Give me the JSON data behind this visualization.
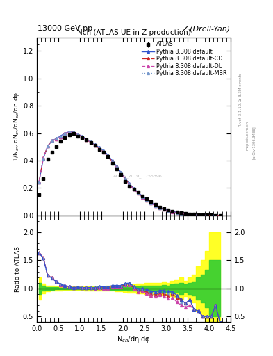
{
  "title_top": "13000 GeV pp",
  "title_right": "Z (Drell-Yan)",
  "plot_title": "Nch (ATLAS UE in Z production)",
  "ylabel_main": "1/N$_{ev}$ dN$_{ev}$/dN$_{ch}$/dη dφ",
  "ylabel_ratio": "Ratio to ATLAS",
  "xlabel": "N$_{ch}$/dη dφ",
  "rivet_label": "Rivet 3.1.10, ≥ 3.3M events",
  "arxiv_label": "[arXiv:1306.3436]",
  "mcplots_label": "mcplots.cern.ch",
  "atlas_watermark": "ATLAS_2019_I1755396",
  "x_data": [
    0.05,
    0.15,
    0.25,
    0.35,
    0.45,
    0.55,
    0.65,
    0.75,
    0.85,
    0.95,
    1.05,
    1.15,
    1.25,
    1.35,
    1.45,
    1.55,
    1.65,
    1.75,
    1.85,
    1.95,
    2.05,
    2.15,
    2.25,
    2.35,
    2.45,
    2.55,
    2.65,
    2.75,
    2.85,
    2.95,
    3.05,
    3.15,
    3.25,
    3.35,
    3.45,
    3.55,
    3.65,
    3.75,
    3.85,
    3.95,
    4.05,
    4.15,
    4.25
  ],
  "atlas_y": [
    0.15,
    0.27,
    0.41,
    0.46,
    0.5,
    0.54,
    0.57,
    0.59,
    0.6,
    0.58,
    0.57,
    0.55,
    0.53,
    0.51,
    0.48,
    0.46,
    0.43,
    0.38,
    0.34,
    0.3,
    0.25,
    0.21,
    0.19,
    0.17,
    0.14,
    0.12,
    0.1,
    0.08,
    0.06,
    0.05,
    0.04,
    0.03,
    0.025,
    0.02,
    0.015,
    0.01,
    0.008,
    0.005,
    0.004,
    0.003,
    0.002,
    0.001,
    0.001
  ],
  "atlas_yerr": [
    0.015,
    0.012,
    0.01,
    0.01,
    0.009,
    0.009,
    0.009,
    0.009,
    0.009,
    0.009,
    0.009,
    0.009,
    0.009,
    0.009,
    0.009,
    0.009,
    0.009,
    0.008,
    0.008,
    0.008,
    0.008,
    0.008,
    0.007,
    0.007,
    0.006,
    0.006,
    0.005,
    0.004,
    0.003,
    0.003,
    0.002,
    0.002,
    0.002,
    0.002,
    0.001,
    0.001,
    0.001,
    0.001,
    0.001,
    0.001,
    0.001,
    0.0005,
    0.0005
  ],
  "pythia_default_y": [
    0.245,
    0.415,
    0.505,
    0.545,
    0.56,
    0.58,
    0.6,
    0.61,
    0.608,
    0.595,
    0.578,
    0.558,
    0.538,
    0.515,
    0.495,
    0.473,
    0.44,
    0.4,
    0.358,
    0.315,
    0.272,
    0.23,
    0.197,
    0.168,
    0.14,
    0.118,
    0.095,
    0.075,
    0.058,
    0.048,
    0.038,
    0.028,
    0.022,
    0.016,
    0.011,
    0.008,
    0.005,
    0.003,
    0.002,
    0.0015,
    0.001,
    0.0007,
    0.0004
  ],
  "pythia_cd_y": [
    0.245,
    0.418,
    0.505,
    0.548,
    0.558,
    0.575,
    0.596,
    0.608,
    0.605,
    0.592,
    0.573,
    0.553,
    0.533,
    0.51,
    0.488,
    0.467,
    0.432,
    0.393,
    0.352,
    0.31,
    0.267,
    0.225,
    0.192,
    0.162,
    0.135,
    0.112,
    0.09,
    0.071,
    0.055,
    0.045,
    0.035,
    0.027,
    0.021,
    0.016,
    0.011,
    0.008,
    0.005,
    0.003,
    0.002,
    0.0015,
    0.001,
    0.0007,
    0.0004
  ],
  "pythia_dl_y": [
    0.245,
    0.418,
    0.505,
    0.548,
    0.558,
    0.575,
    0.596,
    0.608,
    0.605,
    0.592,
    0.573,
    0.553,
    0.533,
    0.51,
    0.488,
    0.462,
    0.428,
    0.388,
    0.35,
    0.308,
    0.265,
    0.223,
    0.19,
    0.16,
    0.133,
    0.11,
    0.088,
    0.069,
    0.053,
    0.043,
    0.033,
    0.025,
    0.019,
    0.014,
    0.01,
    0.007,
    0.005,
    0.003,
    0.002,
    0.0015,
    0.001,
    0.0007,
    0.0004
  ],
  "pythia_mbr_y": [
    0.245,
    0.415,
    0.505,
    0.548,
    0.56,
    0.578,
    0.598,
    0.61,
    0.607,
    0.594,
    0.576,
    0.556,
    0.536,
    0.513,
    0.492,
    0.47,
    0.436,
    0.396,
    0.355,
    0.312,
    0.269,
    0.227,
    0.194,
    0.165,
    0.137,
    0.114,
    0.092,
    0.072,
    0.056,
    0.046,
    0.036,
    0.027,
    0.021,
    0.015,
    0.011,
    0.008,
    0.005,
    0.003,
    0.002,
    0.0015,
    0.001,
    0.0007,
    0.0004
  ],
  "color_default": "#3355cc",
  "color_cd": "#cc2222",
  "color_dl": "#cc44aa",
  "color_mbr": "#7799cc",
  "xlim": [
    0,
    4.5
  ],
  "ylim_main": [
    0,
    1.3
  ],
  "ylim_ratio": [
    0.4,
    2.3
  ],
  "yticks_ratio": [
    0.5,
    1.0,
    1.5,
    2.0
  ],
  "green_lo": 0.9,
  "green_hi": 1.1,
  "yellow_lo": 0.7,
  "yellow_hi": 1.3
}
